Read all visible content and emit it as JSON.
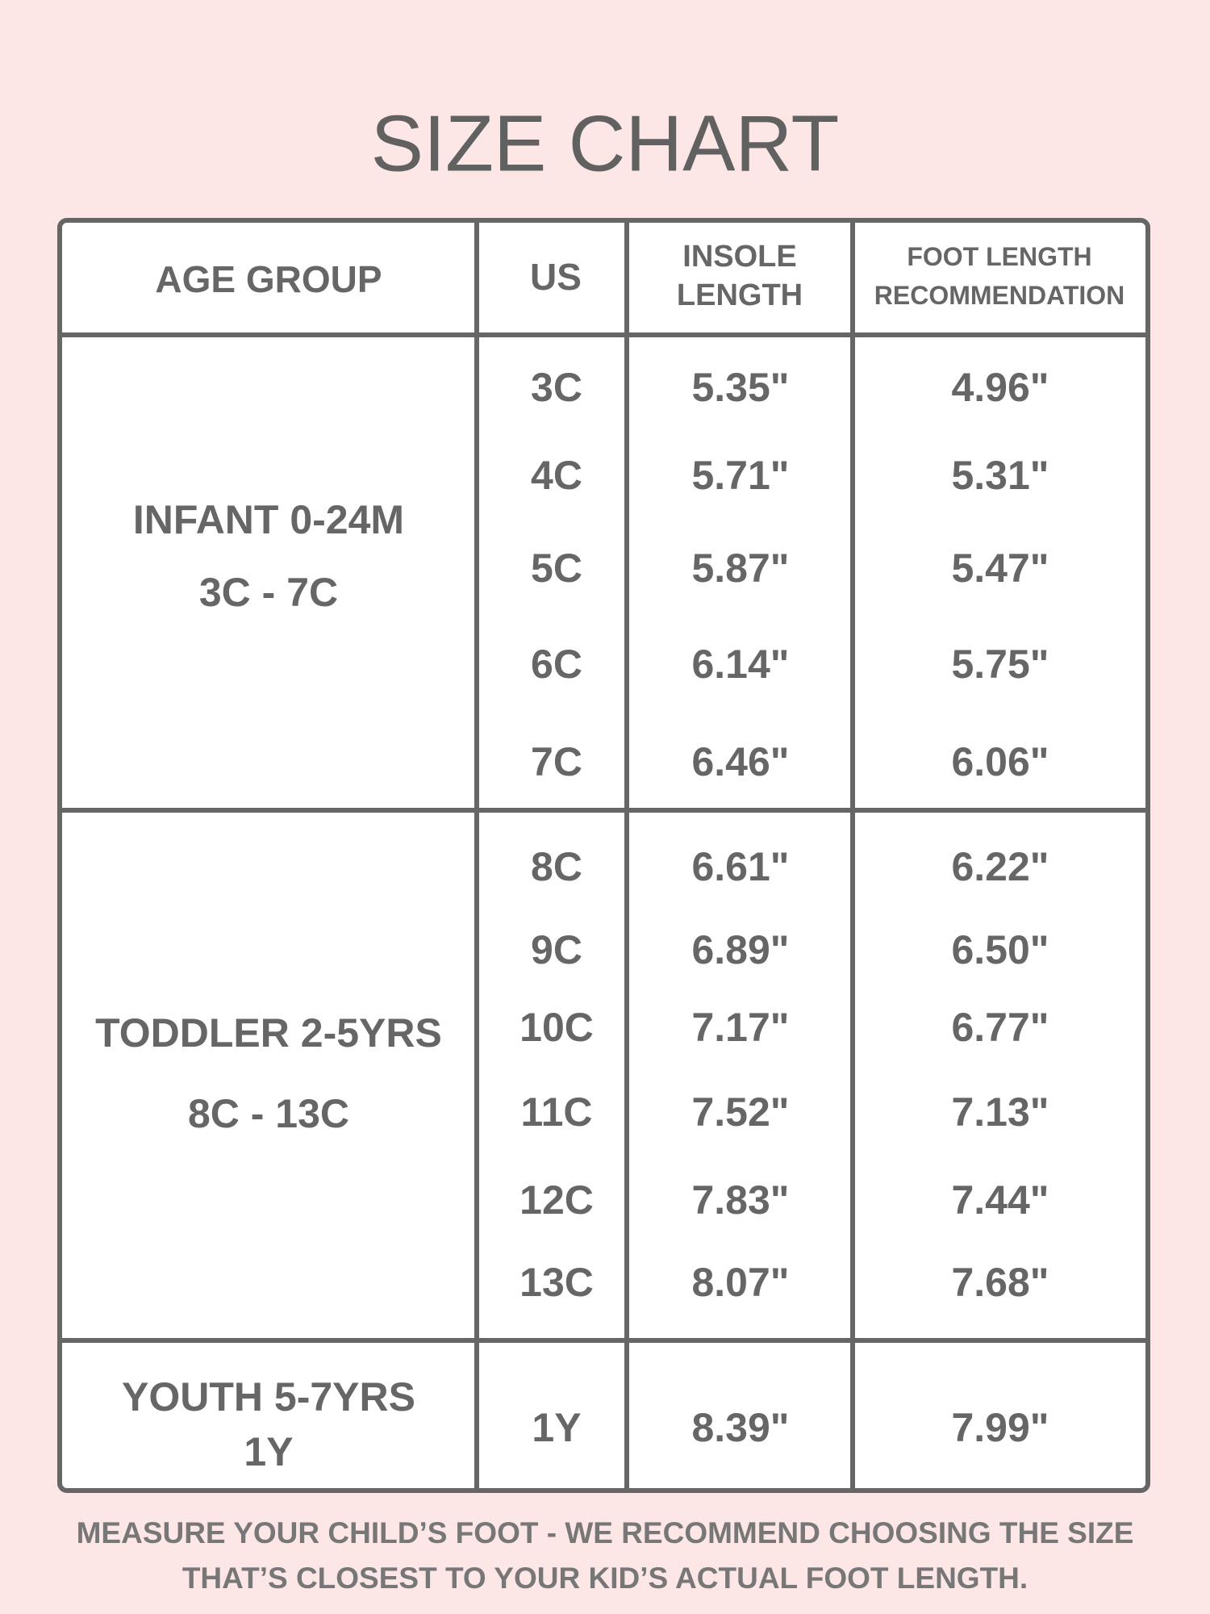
{
  "title": "SIZE CHART",
  "headers": {
    "age_group": "AGE GROUP",
    "us": "US",
    "insole_line1": "INSOLE",
    "insole_line2": "LENGTH",
    "foot_line1": "FOOT LENGTH",
    "foot_line2": "RECOMMENDATION"
  },
  "groups": [
    {
      "line1": "INFANT 0-24M",
      "line2": "3C - 7C"
    },
    {
      "line1": "TODDLER 2-5YRS",
      "line2": "8C - 13C"
    },
    {
      "line1": "YOUTH 5-7YRS",
      "line2": "1Y"
    }
  ],
  "rows": [
    {
      "us": "3C",
      "insole": "5.35\"",
      "foot": "4.96\""
    },
    {
      "us": "4C",
      "insole": "5.71\"",
      "foot": "5.31\""
    },
    {
      "us": "5C",
      "insole": "5.87\"",
      "foot": "5.47\""
    },
    {
      "us": "6C",
      "insole": "6.14\"",
      "foot": "5.75\""
    },
    {
      "us": "7C",
      "insole": "6.46\"",
      "foot": "6.06\""
    },
    {
      "us": "8C",
      "insole": "6.61\"",
      "foot": "6.22\""
    },
    {
      "us": "9C",
      "insole": "6.89\"",
      "foot": "6.50\""
    },
    {
      "us": "10C",
      "insole": "7.17\"",
      "foot": "6.77\""
    },
    {
      "us": "11C",
      "insole": "7.52\"",
      "foot": "7.13\""
    },
    {
      "us": "12C",
      "insole": "7.83\"",
      "foot": "7.44\""
    },
    {
      "us": "13C",
      "insole": "8.07\"",
      "foot": "7.68\""
    },
    {
      "us": "1Y",
      "insole": "8.39\"",
      "foot": "7.99\""
    }
  ],
  "footer": {
    "line1": "MEASURE YOUR CHILD’S FOOT - WE RECOMMEND CHOOSING THE SIZE",
    "line2": "THAT’S CLOSEST TO YOUR KID’S ACTUAL FOOT LENGTH."
  },
  "colors": {
    "background": "#fde6e6",
    "text": "#666666",
    "border": "#666666"
  }
}
